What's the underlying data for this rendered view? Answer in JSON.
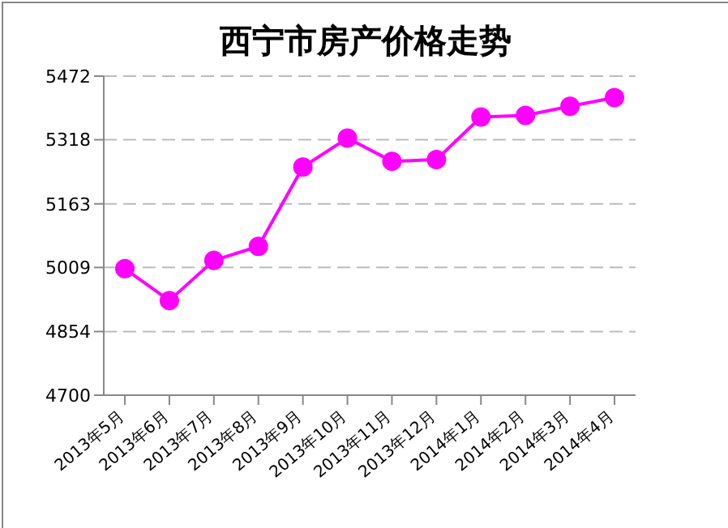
{
  "chart_data": {
    "type": "line",
    "title": "西宁市房产价格走势",
    "categories": [
      "2013年5月",
      "2013年6月",
      "2013年7月",
      "2013年8月",
      "2013年9月",
      "2013年10月",
      "2013年11月",
      "2013年12月",
      "2014年1月",
      "2014年2月",
      "2014年3月",
      "2014年4月"
    ],
    "series": [
      {
        "color": "#ff00ff",
        "values": [
          5006,
          4929,
          5026,
          5060,
          5252,
          5322,
          5266,
          5270,
          5373,
          5377,
          5399,
          5420
        ]
      }
    ],
    "ylim": [
      4700,
      5472
    ],
    "yticks": [
      4700,
      4854,
      5009,
      5163,
      5318,
      5472
    ],
    "grid": "y",
    "marker": "circle",
    "line_style": "solid",
    "legend": false
  }
}
